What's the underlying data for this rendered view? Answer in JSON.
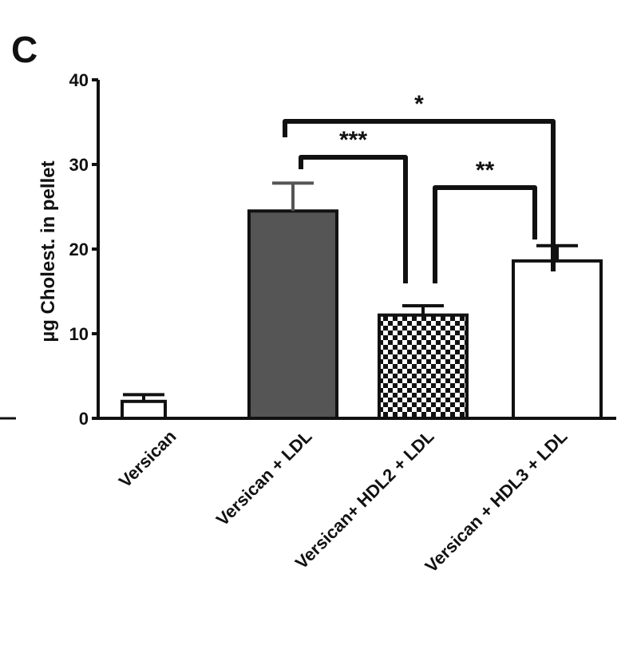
{
  "panel_label": "C",
  "chart_data": {
    "type": "bar",
    "ylabel": "µg Cholest. in pellet",
    "xlabel": "",
    "ylim": [
      0,
      40
    ],
    "yticks": [
      0,
      10,
      20,
      30,
      40
    ],
    "ytick_labels": [
      "0",
      "10",
      "20",
      "30",
      "40"
    ],
    "grid": false,
    "categories": [
      "Versican",
      "Versican + LDL",
      "Versican+ HDL2 + LDL",
      "Versican + HDL3 + LDL"
    ],
    "values": [
      2.0,
      24.5,
      12.2,
      18.6
    ],
    "errors": [
      0.8,
      3.3,
      1.1,
      1.8
    ],
    "bar_fills": [
      "white",
      "dark-gray",
      "checkered",
      "white"
    ],
    "colors": {
      "dark_bar": "#555555",
      "outline": "#111111"
    },
    "significance": [
      {
        "from": 1,
        "to": 3,
        "label": "*"
      },
      {
        "from": 1,
        "to": 2,
        "label": "***"
      },
      {
        "from": 2,
        "to": 3,
        "label": "**"
      }
    ]
  }
}
